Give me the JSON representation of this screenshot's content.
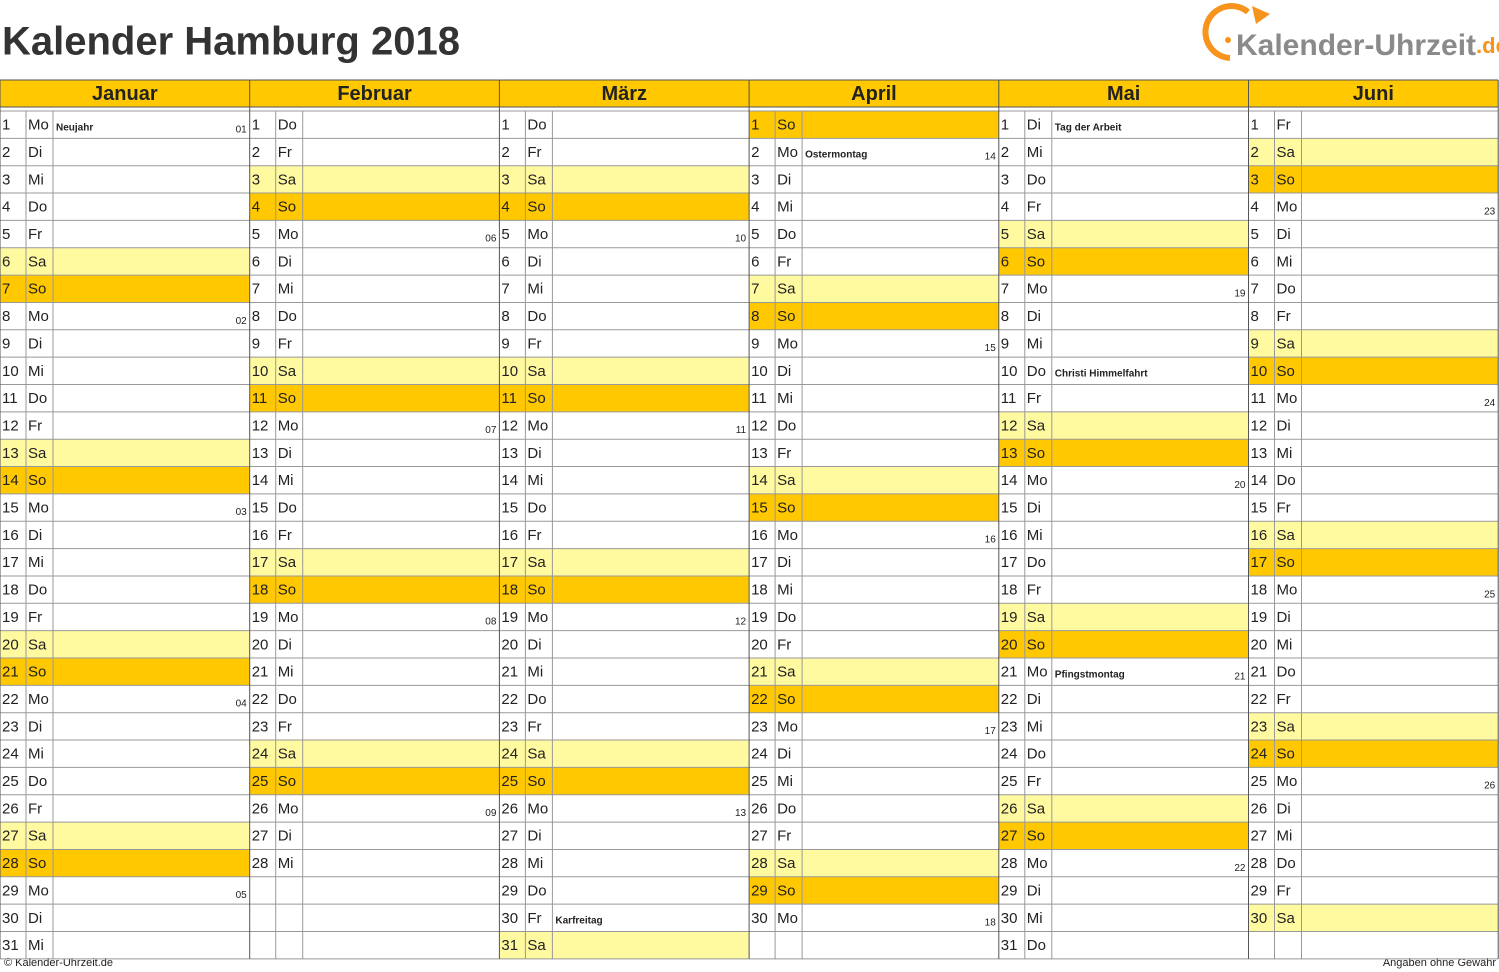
{
  "title": "Kalender Hamburg 2018",
  "logo": {
    "name": "Kalender-Uhrzeit",
    "tld": ".de"
  },
  "footer": {
    "left": "© Kalender-Uhrzeit.de",
    "right": "Angaben ohne Gewähr"
  },
  "weekend_colors": {
    "Sa": "#fff9a0",
    "So": "#ffc800"
  },
  "months": [
    {
      "name": "Januar",
      "days": [
        {
          "day": 1,
          "wd": "Mo",
          "hol": "Neujahr",
          "kw": "01"
        },
        {
          "day": 2,
          "wd": "Di"
        },
        {
          "day": 3,
          "wd": "Mi"
        },
        {
          "day": 4,
          "wd": "Do"
        },
        {
          "day": 5,
          "wd": "Fr"
        },
        {
          "day": 6,
          "wd": "Sa"
        },
        {
          "day": 7,
          "wd": "So"
        },
        {
          "day": 8,
          "wd": "Mo",
          "kw": "02"
        },
        {
          "day": 9,
          "wd": "Di"
        },
        {
          "day": 10,
          "wd": "Mi"
        },
        {
          "day": 11,
          "wd": "Do"
        },
        {
          "day": 12,
          "wd": "Fr"
        },
        {
          "day": 13,
          "wd": "Sa"
        },
        {
          "day": 14,
          "wd": "So"
        },
        {
          "day": 15,
          "wd": "Mo",
          "kw": "03"
        },
        {
          "day": 16,
          "wd": "Di"
        },
        {
          "day": 17,
          "wd": "Mi"
        },
        {
          "day": 18,
          "wd": "Do"
        },
        {
          "day": 19,
          "wd": "Fr"
        },
        {
          "day": 20,
          "wd": "Sa"
        },
        {
          "day": 21,
          "wd": "So"
        },
        {
          "day": 22,
          "wd": "Mo",
          "kw": "04"
        },
        {
          "day": 23,
          "wd": "Di"
        },
        {
          "day": 24,
          "wd": "Mi"
        },
        {
          "day": 25,
          "wd": "Do"
        },
        {
          "day": 26,
          "wd": "Fr"
        },
        {
          "day": 27,
          "wd": "Sa"
        },
        {
          "day": 28,
          "wd": "So"
        },
        {
          "day": 29,
          "wd": "Mo",
          "kw": "05"
        },
        {
          "day": 30,
          "wd": "Di"
        },
        {
          "day": 31,
          "wd": "Mi"
        }
      ]
    },
    {
      "name": "Februar",
      "days": [
        {
          "day": 1,
          "wd": "Do"
        },
        {
          "day": 2,
          "wd": "Fr"
        },
        {
          "day": 3,
          "wd": "Sa"
        },
        {
          "day": 4,
          "wd": "So"
        },
        {
          "day": 5,
          "wd": "Mo",
          "kw": "06"
        },
        {
          "day": 6,
          "wd": "Di"
        },
        {
          "day": 7,
          "wd": "Mi"
        },
        {
          "day": 8,
          "wd": "Do"
        },
        {
          "day": 9,
          "wd": "Fr"
        },
        {
          "day": 10,
          "wd": "Sa"
        },
        {
          "day": 11,
          "wd": "So"
        },
        {
          "day": 12,
          "wd": "Mo",
          "kw": "07"
        },
        {
          "day": 13,
          "wd": "Di"
        },
        {
          "day": 14,
          "wd": "Mi"
        },
        {
          "day": 15,
          "wd": "Do"
        },
        {
          "day": 16,
          "wd": "Fr"
        },
        {
          "day": 17,
          "wd": "Sa"
        },
        {
          "day": 18,
          "wd": "So"
        },
        {
          "day": 19,
          "wd": "Mo",
          "kw": "08"
        },
        {
          "day": 20,
          "wd": "Di"
        },
        {
          "day": 21,
          "wd": "Mi"
        },
        {
          "day": 22,
          "wd": "Do"
        },
        {
          "day": 23,
          "wd": "Fr"
        },
        {
          "day": 24,
          "wd": "Sa"
        },
        {
          "day": 25,
          "wd": "So"
        },
        {
          "day": 26,
          "wd": "Mo",
          "kw": "09"
        },
        {
          "day": 27,
          "wd": "Di"
        },
        {
          "day": 28,
          "wd": "Mi"
        }
      ]
    },
    {
      "name": "März",
      "days": [
        {
          "day": 1,
          "wd": "Do"
        },
        {
          "day": 2,
          "wd": "Fr"
        },
        {
          "day": 3,
          "wd": "Sa"
        },
        {
          "day": 4,
          "wd": "So"
        },
        {
          "day": 5,
          "wd": "Mo",
          "kw": "10"
        },
        {
          "day": 6,
          "wd": "Di"
        },
        {
          "day": 7,
          "wd": "Mi"
        },
        {
          "day": 8,
          "wd": "Do"
        },
        {
          "day": 9,
          "wd": "Fr"
        },
        {
          "day": 10,
          "wd": "Sa"
        },
        {
          "day": 11,
          "wd": "So"
        },
        {
          "day": 12,
          "wd": "Mo",
          "kw": "11"
        },
        {
          "day": 13,
          "wd": "Di"
        },
        {
          "day": 14,
          "wd": "Mi"
        },
        {
          "day": 15,
          "wd": "Do"
        },
        {
          "day": 16,
          "wd": "Fr"
        },
        {
          "day": 17,
          "wd": "Sa"
        },
        {
          "day": 18,
          "wd": "So"
        },
        {
          "day": 19,
          "wd": "Mo",
          "kw": "12"
        },
        {
          "day": 20,
          "wd": "Di"
        },
        {
          "day": 21,
          "wd": "Mi"
        },
        {
          "day": 22,
          "wd": "Do"
        },
        {
          "day": 23,
          "wd": "Fr"
        },
        {
          "day": 24,
          "wd": "Sa"
        },
        {
          "day": 25,
          "wd": "So"
        },
        {
          "day": 26,
          "wd": "Mo",
          "kw": "13"
        },
        {
          "day": 27,
          "wd": "Di"
        },
        {
          "day": 28,
          "wd": "Mi"
        },
        {
          "day": 29,
          "wd": "Do"
        },
        {
          "day": 30,
          "wd": "Fr",
          "hol": "Karfreitag"
        },
        {
          "day": 31,
          "wd": "Sa"
        }
      ]
    },
    {
      "name": "April",
      "days": [
        {
          "day": 1,
          "wd": "So"
        },
        {
          "day": 2,
          "wd": "Mo",
          "hol": "Ostermontag",
          "kw": "14"
        },
        {
          "day": 3,
          "wd": "Di"
        },
        {
          "day": 4,
          "wd": "Mi"
        },
        {
          "day": 5,
          "wd": "Do"
        },
        {
          "day": 6,
          "wd": "Fr"
        },
        {
          "day": 7,
          "wd": "Sa"
        },
        {
          "day": 8,
          "wd": "So"
        },
        {
          "day": 9,
          "wd": "Mo",
          "kw": "15"
        },
        {
          "day": 10,
          "wd": "Di"
        },
        {
          "day": 11,
          "wd": "Mi"
        },
        {
          "day": 12,
          "wd": "Do"
        },
        {
          "day": 13,
          "wd": "Fr"
        },
        {
          "day": 14,
          "wd": "Sa"
        },
        {
          "day": 15,
          "wd": "So"
        },
        {
          "day": 16,
          "wd": "Mo",
          "kw": "16"
        },
        {
          "day": 17,
          "wd": "Di"
        },
        {
          "day": 18,
          "wd": "Mi"
        },
        {
          "day": 19,
          "wd": "Do"
        },
        {
          "day": 20,
          "wd": "Fr"
        },
        {
          "day": 21,
          "wd": "Sa"
        },
        {
          "day": 22,
          "wd": "So"
        },
        {
          "day": 23,
          "wd": "Mo",
          "kw": "17"
        },
        {
          "day": 24,
          "wd": "Di"
        },
        {
          "day": 25,
          "wd": "Mi"
        },
        {
          "day": 26,
          "wd": "Do"
        },
        {
          "day": 27,
          "wd": "Fr"
        },
        {
          "day": 28,
          "wd": "Sa"
        },
        {
          "day": 29,
          "wd": "So"
        },
        {
          "day": 30,
          "wd": "Mo",
          "kw": "18"
        }
      ]
    },
    {
      "name": "Mai",
      "days": [
        {
          "day": 1,
          "wd": "Di",
          "hol": "Tag der Arbeit"
        },
        {
          "day": 2,
          "wd": "Mi"
        },
        {
          "day": 3,
          "wd": "Do"
        },
        {
          "day": 4,
          "wd": "Fr"
        },
        {
          "day": 5,
          "wd": "Sa"
        },
        {
          "day": 6,
          "wd": "So"
        },
        {
          "day": 7,
          "wd": "Mo",
          "kw": "19"
        },
        {
          "day": 8,
          "wd": "Di"
        },
        {
          "day": 9,
          "wd": "Mi"
        },
        {
          "day": 10,
          "wd": "Do",
          "hol": "Christi Himmelfahrt"
        },
        {
          "day": 11,
          "wd": "Fr"
        },
        {
          "day": 12,
          "wd": "Sa"
        },
        {
          "day": 13,
          "wd": "So"
        },
        {
          "day": 14,
          "wd": "Mo",
          "kw": "20"
        },
        {
          "day": 15,
          "wd": "Di"
        },
        {
          "day": 16,
          "wd": "Mi"
        },
        {
          "day": 17,
          "wd": "Do"
        },
        {
          "day": 18,
          "wd": "Fr"
        },
        {
          "day": 19,
          "wd": "Sa"
        },
        {
          "day": 20,
          "wd": "So"
        },
        {
          "day": 21,
          "wd": "Mo",
          "hol": "Pfingstmontag",
          "kw": "21"
        },
        {
          "day": 22,
          "wd": "Di"
        },
        {
          "day": 23,
          "wd": "Mi"
        },
        {
          "day": 24,
          "wd": "Do"
        },
        {
          "day": 25,
          "wd": "Fr"
        },
        {
          "day": 26,
          "wd": "Sa"
        },
        {
          "day": 27,
          "wd": "So"
        },
        {
          "day": 28,
          "wd": "Mo",
          "kw": "22"
        },
        {
          "day": 29,
          "wd": "Di"
        },
        {
          "day": 30,
          "wd": "Mi"
        },
        {
          "day": 31,
          "wd": "Do"
        }
      ]
    },
    {
      "name": "Juni",
      "days": [
        {
          "day": 1,
          "wd": "Fr"
        },
        {
          "day": 2,
          "wd": "Sa"
        },
        {
          "day": 3,
          "wd": "So"
        },
        {
          "day": 4,
          "wd": "Mo",
          "kw": "23"
        },
        {
          "day": 5,
          "wd": "Di"
        },
        {
          "day": 6,
          "wd": "Mi"
        },
        {
          "day": 7,
          "wd": "Do"
        },
        {
          "day": 8,
          "wd": "Fr"
        },
        {
          "day": 9,
          "wd": "Sa"
        },
        {
          "day": 10,
          "wd": "So"
        },
        {
          "day": 11,
          "wd": "Mo",
          "kw": "24"
        },
        {
          "day": 12,
          "wd": "Di"
        },
        {
          "day": 13,
          "wd": "Mi"
        },
        {
          "day": 14,
          "wd": "Do"
        },
        {
          "day": 15,
          "wd": "Fr"
        },
        {
          "day": 16,
          "wd": "Sa"
        },
        {
          "day": 17,
          "wd": "So"
        },
        {
          "day": 18,
          "wd": "Mo",
          "kw": "25"
        },
        {
          "day": 19,
          "wd": "Di"
        },
        {
          "day": 20,
          "wd": "Mi"
        },
        {
          "day": 21,
          "wd": "Do"
        },
        {
          "day": 22,
          "wd": "Fr"
        },
        {
          "day": 23,
          "wd": "Sa"
        },
        {
          "day": 24,
          "wd": "So"
        },
        {
          "day": 25,
          "wd": "Mo",
          "kw": "26"
        },
        {
          "day": 26,
          "wd": "Di"
        },
        {
          "day": 27,
          "wd": "Mi"
        },
        {
          "day": 28,
          "wd": "Do"
        },
        {
          "day": 29,
          "wd": "Fr"
        },
        {
          "day": 30,
          "wd": "Sa"
        }
      ]
    }
  ]
}
